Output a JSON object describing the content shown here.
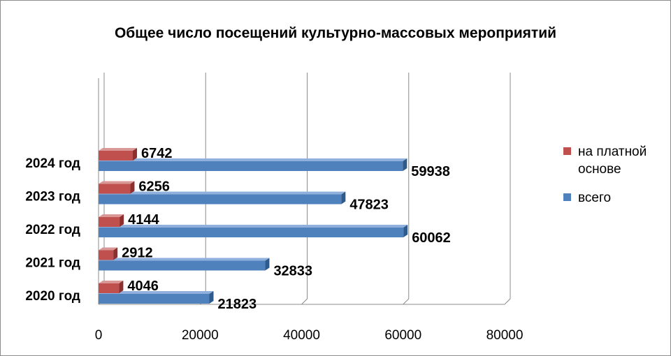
{
  "chart_data": {
    "type": "bar",
    "orientation": "horizontal",
    "title": "Общее число посещений культурно-массовых мероприятий",
    "categories": [
      "2020 год",
      "2021 год",
      "2022 год",
      "2023 год",
      "2024 год"
    ],
    "series": [
      {
        "name": "на платной основе",
        "values": [
          4046,
          2912,
          4144,
          6256,
          6742
        ],
        "color": "#c0504d"
      },
      {
        "name": "всего",
        "values": [
          21823,
          32833,
          60062,
          47823,
          59938
        ],
        "color": "#4f81bd"
      }
    ],
    "xlim": [
      0,
      80000
    ],
    "xticks": [
      0,
      20000,
      40000,
      60000,
      80000
    ],
    "grid": true,
    "legend_position": "right",
    "data_labels": true
  }
}
